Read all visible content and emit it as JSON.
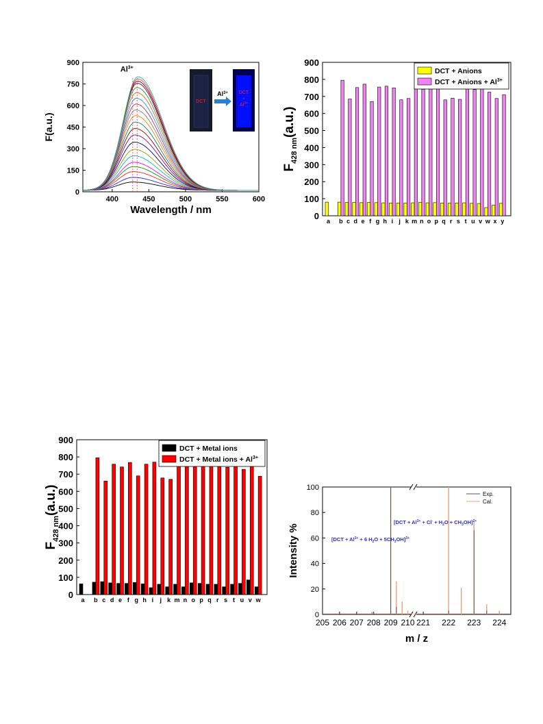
{
  "chart_data": [
    {
      "id": "spectra",
      "type": "line",
      "xlabel": "Wavelength / nm",
      "ylabel": "F(a.u.)",
      "xlim": [
        360,
        600
      ],
      "ylim": [
        0,
        900
      ],
      "xticks": [
        400,
        450,
        500,
        550,
        600
      ],
      "yticks": [
        0,
        150,
        300,
        450,
        600,
        750,
        900
      ],
      "peak_label": "Al",
      "peak_label_sup": "3+",
      "peak_wavelength": 428,
      "baseline_level": 10,
      "peak_intensities": [
        58,
        90,
        130,
        165,
        195,
        240,
        285,
        335,
        385,
        430,
        475,
        520,
        560,
        600,
        640,
        680,
        715,
        745,
        760,
        775,
        790
      ],
      "series_colors": [
        "#000000",
        "#1f1fff",
        "#ff2020",
        "#00a000",
        "#ff00ff",
        "#00bbbb",
        "#999900",
        "#000080",
        "#800080",
        "#800000",
        "#008080",
        "#ff7f00",
        "#7f7f7f",
        "#b03060",
        "#1e90ff",
        "#d2691e",
        "#2e8b57",
        "#8b0000",
        "#4b0082",
        "#ff4500",
        "#20b2aa"
      ],
      "inset": {
        "left_label": "DCT",
        "arrow_label": "Al",
        "arrow_label_sup": "3+",
        "right_label_lines": [
          "DCT",
          "+",
          "Al"
        ],
        "right_label_sup": "3+"
      }
    },
    {
      "id": "anions",
      "type": "bar",
      "ylabel": "F",
      "ylabel_sub": "428 nm",
      "ylabel_suffix": "(a.u.)",
      "ylim": [
        0,
        900
      ],
      "yticks": [
        0,
        100,
        200,
        300,
        400,
        500,
        600,
        700,
        800,
        900
      ],
      "categories": [
        "a",
        "b",
        "c",
        "d",
        "e",
        "f",
        "g",
        "h",
        "i",
        "j",
        "k",
        "m",
        "n",
        "o",
        "p",
        "q",
        "r",
        "s",
        "t",
        "u",
        "v",
        "w",
        "x",
        "y"
      ],
      "series": [
        {
          "name": "DCT + Anions",
          "color": "#ffff00",
          "values": [
            80,
            80,
            78,
            78,
            77,
            78,
            77,
            76,
            75,
            75,
            75,
            76,
            78,
            76,
            77,
            75,
            74,
            75,
            76,
            73,
            72,
            48,
            62,
            73
          ]
        },
        {
          "name": "DCT + Anions + Al",
          "name_sup": "3+",
          "color": "#ee82ee",
          "values": [
            null,
            795,
            685,
            752,
            772,
            670,
            755,
            760,
            750,
            680,
            688,
            755,
            742,
            748,
            755,
            680,
            690,
            683,
            760,
            740,
            775,
            725,
            688,
            710
          ]
        }
      ],
      "legend": "top-right"
    },
    {
      "id": "metals",
      "type": "bar",
      "ylabel": "F",
      "ylabel_sub": "428 nm",
      "ylabel_suffix": "(a.u.)",
      "ylim": [
        0,
        900
      ],
      "yticks": [
        0,
        100,
        200,
        300,
        400,
        500,
        600,
        700,
        800,
        900
      ],
      "categories": [
        "a",
        "b",
        "c",
        "d",
        "e",
        "f",
        "g",
        "h",
        "i",
        "j",
        "k",
        "m",
        "n",
        "o",
        "p",
        "q",
        "r",
        "s",
        "t",
        "u",
        "v",
        "w"
      ],
      "series": [
        {
          "name": "DCT + Metal ions",
          "color": "#000000",
          "values": [
            62,
            72,
            75,
            68,
            65,
            65,
            70,
            62,
            40,
            60,
            45,
            60,
            45,
            68,
            65,
            60,
            60,
            45,
            60,
            65,
            85,
            45
          ]
        },
        {
          "name": "DCT + Metal ions + Al",
          "name_sup": "3+",
          "color": "#ff0000",
          "values": [
            null,
            795,
            660,
            758,
            742,
            768,
            690,
            758,
            770,
            678,
            670,
            780,
            752,
            750,
            775,
            762,
            752,
            740,
            778,
            728,
            768,
            688
          ]
        }
      ],
      "legend": "top-right"
    },
    {
      "id": "mass",
      "type": "line",
      "xlabel": "m / z",
      "ylabel": "Intensity %",
      "ylim": [
        0,
        100
      ],
      "yticks": [
        0,
        20,
        40,
        60,
        80,
        100
      ],
      "xticks_left": [
        "205",
        "206",
        "207",
        "208",
        "209",
        "210"
      ],
      "xticks_right": [
        "221",
        "222",
        "223",
        "224"
      ],
      "series": [
        {
          "name": "Exp.",
          "color": "#555555"
        },
        {
          "name": "Cal.",
          "color": "#e8a080"
        }
      ],
      "legend": "top-right",
      "annotation_left": {
        "text": "[DCT + Al",
        "sup1": "3+",
        "text2": " + 6 H",
        "sub1": "2",
        "text3": "O + 5CH",
        "sub2": "3",
        "text4": "OH]",
        "sup2": "3+"
      },
      "annotation_right": {
        "text": "[DCT + Al",
        "sup1": "3+",
        "text2": " + Cl",
        "sup_cl": "-",
        "text3": " + H",
        "sub1": "2",
        "text4": "O + CH",
        "sub2": "3",
        "text5": "OH]",
        "sup2": "2+"
      }
    }
  ]
}
